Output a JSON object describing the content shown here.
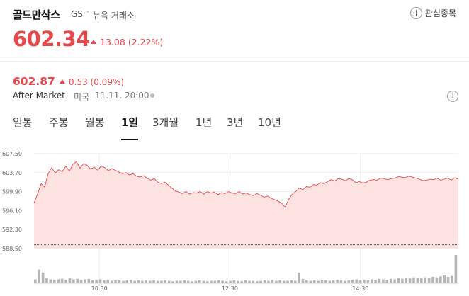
{
  "header": {
    "name": "골드만삭스",
    "ticker": "GS",
    "separator": "·",
    "exchange": "뉴욕 거래소",
    "watch_label": "관심종목"
  },
  "quote": {
    "price": "602.34",
    "change": "13.08",
    "change_pct": "(2.22%)"
  },
  "after_hours": {
    "price": "602.87",
    "change": "0.53",
    "change_pct": "(0.09%)",
    "label": "After Market",
    "region": "미국",
    "time": "11.11. 20:00",
    "info_icon": "i"
  },
  "tabs": [
    {
      "label": "일봉",
      "active": false
    },
    {
      "label": "주봉",
      "active": false
    },
    {
      "label": "월봉",
      "active": false
    },
    {
      "label": "1일",
      "active": true
    },
    {
      "label": "3개월",
      "active": false
    },
    {
      "label": "1년",
      "active": false
    },
    {
      "label": "3년",
      "active": false
    },
    {
      "label": "10년",
      "active": false
    }
  ],
  "colors": {
    "up": "#e8484b",
    "area_fill": "#fde2e2",
    "volume": "#b5b5b5"
  },
  "chart_data": {
    "type": "area",
    "ylim": [
      588.5,
      607.5
    ],
    "y_ticks": [
      "607.50",
      "603.70",
      "599.90",
      "596.10",
      "592.30",
      "588.50"
    ],
    "x_ticks": [
      "10:30",
      "12:30",
      "14:30"
    ],
    "x_tick_minutes": [
      60,
      180,
      300
    ],
    "session_minutes": 390,
    "baseline": 589.26,
    "series": [
      {
        "values": [
          597.6,
          599.4,
          601.5,
          600.8,
          603.5,
          604.7,
          603.6,
          604.3,
          603.9,
          605.0,
          604.0,
          605.4,
          605.9,
          604.6,
          605.5,
          605.2,
          604.4,
          604.8,
          604.2,
          605.0,
          604.7,
          604.1,
          604.5,
          604.2,
          603.8,
          603.5,
          603.7,
          603.2,
          603.5,
          603.0,
          602.8,
          603.1,
          602.6,
          602.2,
          602.5,
          601.8,
          601.5,
          601.8,
          601.2,
          600.6,
          600.0,
          599.8,
          599.5,
          599.9,
          599.4,
          599.7,
          599.6,
          599.9,
          599.4,
          599.9,
          599.6,
          599.8,
          599.3,
          599.7,
          599.5,
          599.9,
          599.6,
          599.5,
          599.9,
          599.4,
          599.6,
          599.3,
          599.1,
          599.5,
          599.2,
          598.8,
          599.0,
          598.6,
          598.3,
          598.0,
          597.6,
          596.8,
          598.3,
          599.4,
          599.9,
          600.6,
          600.3,
          600.9,
          600.8,
          601.3,
          601.2,
          601.7,
          601.5,
          601.9,
          602.3,
          602.0,
          602.5,
          602.4,
          602.1,
          602.5,
          602.3,
          601.7,
          601.9,
          601.6,
          601.8,
          602.2,
          602.3,
          602.2,
          602.6,
          602.5,
          602.3,
          602.5,
          602.6,
          602.9,
          602.8,
          602.7,
          603.0,
          602.8,
          602.6,
          602.4,
          602.1,
          602.2,
          602.4,
          602.3,
          602.6,
          602.2,
          602.4,
          602.6,
          602.2,
          602.7,
          602.4
        ]
      }
    ],
    "volume": {
      "values": [
        8,
        28,
        22,
        10,
        8,
        7,
        8,
        9,
        7,
        10,
        8,
        9,
        7,
        8,
        9,
        6,
        7,
        8,
        6,
        7,
        5,
        6,
        6,
        5,
        6,
        7,
        5,
        6,
        5,
        6,
        5,
        6,
        5,
        5,
        6,
        5,
        4,
        5,
        5,
        6,
        5,
        4,
        5,
        6,
        5,
        4,
        5,
        5,
        6,
        5,
        4,
        5,
        6,
        5,
        4,
        6,
        5,
        5,
        4,
        5,
        6,
        5,
        7,
        5,
        6,
        5,
        5,
        6,
        5,
        22,
        9,
        6,
        5,
        6,
        5,
        7,
        6,
        5,
        6,
        7,
        6,
        5,
        6,
        7,
        8,
        6,
        7,
        6,
        8,
        7,
        9,
        8,
        7,
        9,
        8,
        10,
        9,
        11,
        10,
        12,
        11,
        10,
        12,
        11,
        13,
        12,
        14,
        16,
        13,
        15,
        58
      ]
    }
  }
}
